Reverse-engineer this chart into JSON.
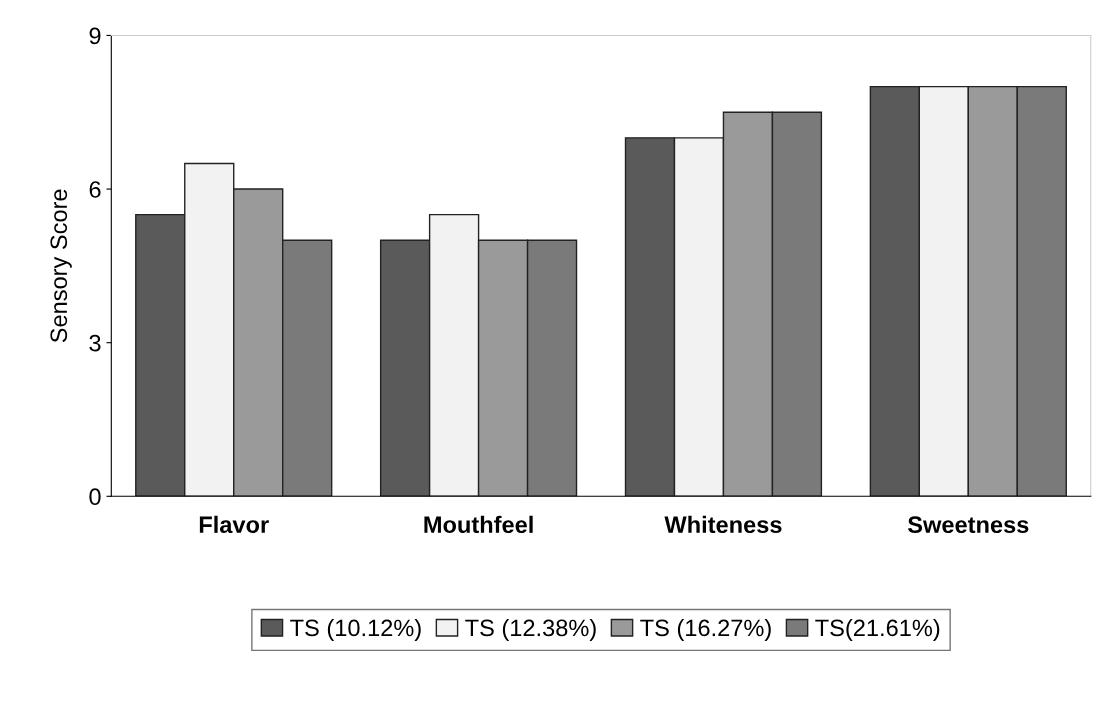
{
  "chart_data": {
    "type": "bar",
    "ylabel": "Sensory Score",
    "categories": [
      "Flavor",
      "Mouthfeel",
      "Whiteness",
      "Sweetness"
    ],
    "series": [
      {
        "name": "TS (10.12%)",
        "color": "#5a5a5a",
        "values": [
          5.5,
          5,
          7,
          8
        ]
      },
      {
        "name": "TS (12.38%)",
        "color": "#f2f2f2",
        "values": [
          6.5,
          5.5,
          7,
          8
        ]
      },
      {
        "name": "TS (16.27%)",
        "color": "#9a9a9a",
        "values": [
          6,
          5,
          7.5,
          8
        ]
      },
      {
        "name": "TS(21.61%)",
        "color": "#7a7a7a",
        "values": [
          5,
          5,
          7.5,
          8
        ]
      }
    ],
    "ylim": [
      0,
      9
    ],
    "yticks": [
      0,
      3,
      6,
      9
    ],
    "grid": false,
    "legend": "bottom"
  }
}
